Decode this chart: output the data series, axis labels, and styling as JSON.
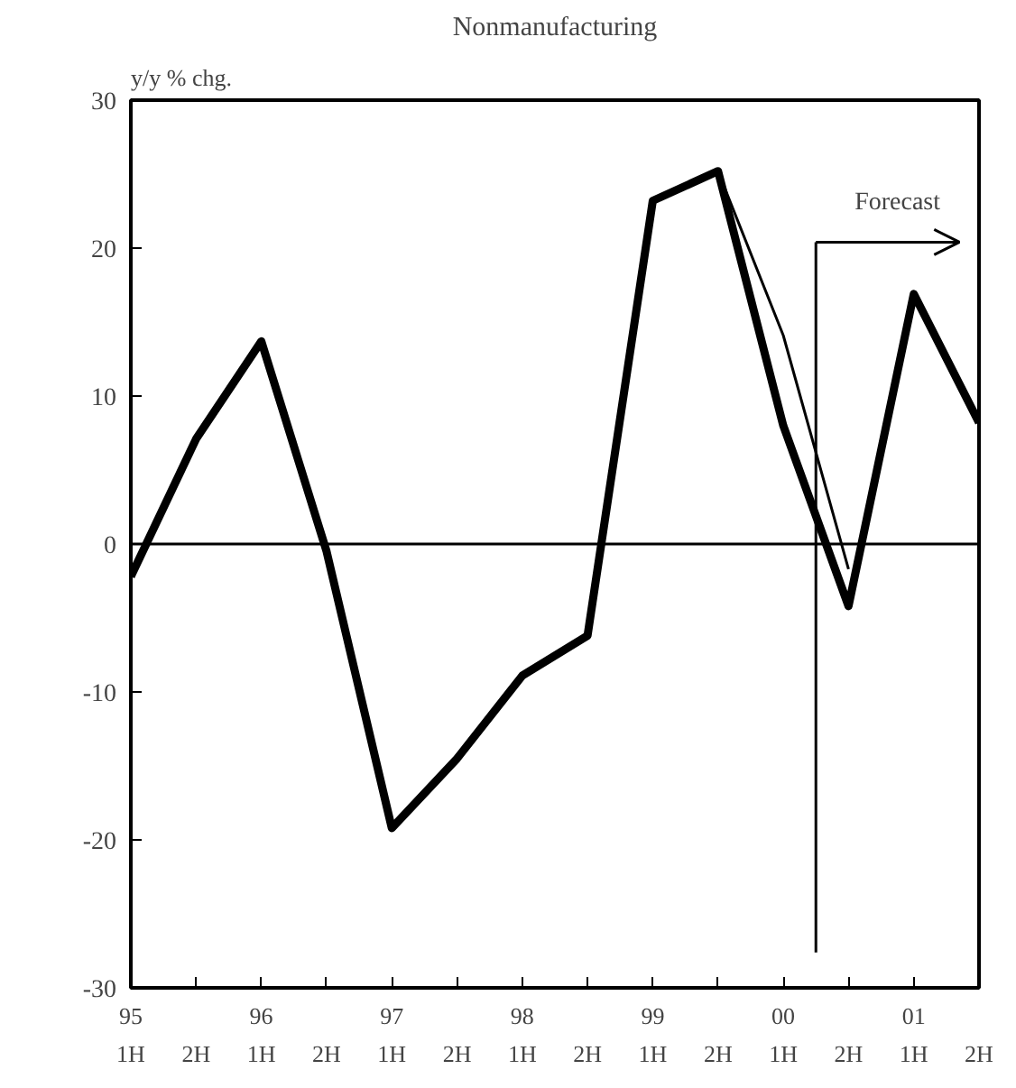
{
  "chart_data": {
    "type": "line",
    "title": "Nonmanufacturing",
    "ylabel": "y/y % chg.",
    "categories": [
      "95 1H",
      "2H",
      "96 1H",
      "2H",
      "97 1H",
      "2H",
      "98 1H",
      "2H",
      "99 1H",
      "2H",
      "00 1H",
      "2H",
      "01 1H",
      "2H"
    ],
    "series": [
      {
        "color": "#000000",
        "values": [
          -2.2,
          7.1,
          13.7,
          -0.5,
          -19.2,
          -14.5,
          -8.9,
          -6.2,
          23.2,
          25.2,
          8.0,
          -4.2,
          16.9,
          8.2
        ]
      },
      {
        "color": "#000000",
        "values": [
          null,
          null,
          null,
          null,
          null,
          null,
          null,
          null,
          null,
          25.2,
          14.1,
          -1.7,
          null,
          null
        ]
      }
    ],
    "ylim": [
      -30,
      30
    ],
    "yticks": [
      -30,
      -20,
      -10,
      0,
      10,
      20,
      30
    ],
    "ref_lines": [
      {
        "axis": "y",
        "value": 0
      }
    ],
    "annotations": [
      "Forecast"
    ],
    "grid": false,
    "marker": "none",
    "line_style": "solid"
  }
}
